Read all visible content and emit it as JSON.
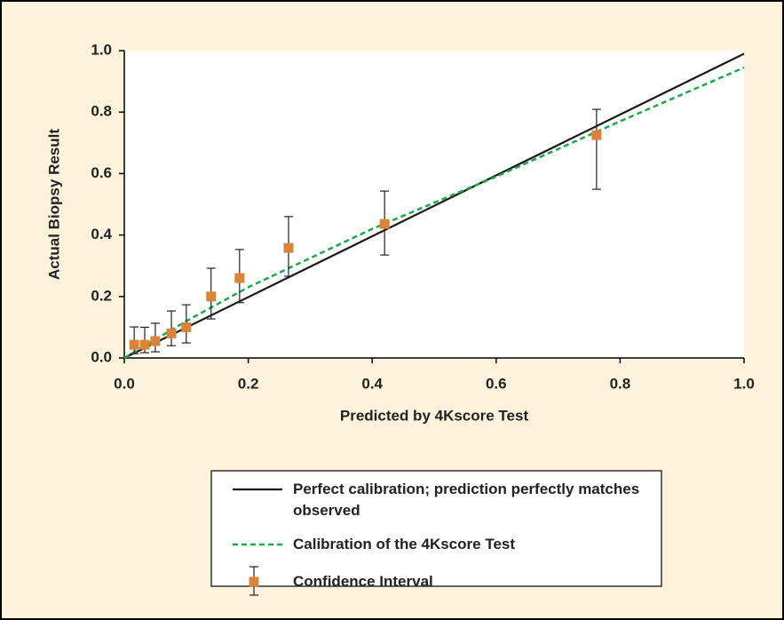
{
  "chart_data": {
    "type": "calibration",
    "xlabel": "Predicted by 4Kscore Test",
    "ylabel": "Actual Biopsy Result",
    "xlim": [
      0,
      1
    ],
    "ylim": [
      0,
      1
    ],
    "xticks": [
      {
        "value": 0,
        "label": "0.0"
      },
      0.2,
      0.4,
      0.6,
      0.8,
      {
        "value": 1,
        "label": "1.0"
      }
    ],
    "yticks": [
      {
        "value": 0,
        "label": "0.0"
      },
      0.2,
      0.4,
      0.6,
      0.8,
      {
        "value": 1,
        "label": "1.0"
      }
    ],
    "series": [
      {
        "name": "Perfect calibration; prediction perfectly matches observed",
        "type": "line",
        "style": "solid",
        "color": "#1a1a1a",
        "x": [
          0,
          1
        ],
        "values": [
          0,
          0.99
        ]
      },
      {
        "name": "Calibration of the 4Kscore Test",
        "type": "line",
        "style": "dashed",
        "color": "#1aaa4a",
        "x": [
          0,
          0.1,
          0.2,
          0.4,
          0.6,
          0.8,
          1.0
        ],
        "values": [
          0,
          0.12,
          0.23,
          0.42,
          0.59,
          0.77,
          0.945
        ]
      },
      {
        "name": "Confidence Interval",
        "type": "scatter",
        "color": "#d9843a",
        "x": [
          0.016,
          0.033,
          0.05,
          0.076,
          0.1,
          0.14,
          0.186,
          0.265,
          0.42,
          0.762
        ],
        "values": [
          0.043,
          0.043,
          0.055,
          0.08,
          0.1,
          0.2,
          0.26,
          0.358,
          0.436,
          0.725
        ],
        "lower": [
          0.014,
          0.017,
          0.02,
          0.04,
          0.049,
          0.127,
          0.18,
          0.266,
          0.335,
          0.549
        ],
        "upper": [
          0.101,
          0.1,
          0.113,
          0.153,
          0.173,
          0.292,
          0.353,
          0.46,
          0.543,
          0.809
        ]
      }
    ]
  }
}
